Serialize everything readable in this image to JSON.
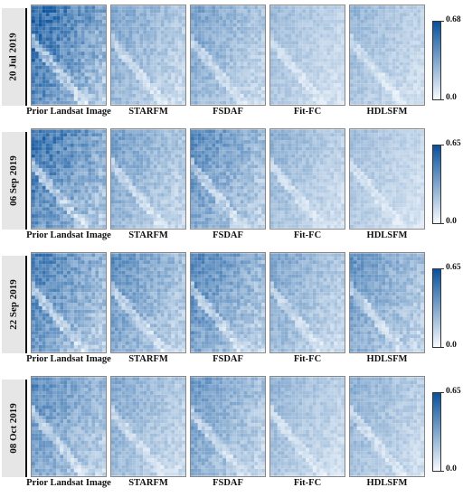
{
  "colorbar": {
    "low_color": "#f7fbff",
    "high_color": "#08519c"
  },
  "rows": [
    {
      "date": "20 Jul 2019",
      "vmax": "0.68",
      "vmin": "0.0",
      "panels": [
        {
          "label": "Prior Landsat Image",
          "intensity": 0.75
        },
        {
          "label": "STARFM",
          "intensity": 0.42
        },
        {
          "label": "FSDAF",
          "intensity": 0.44
        },
        {
          "label": "Fit-FC",
          "intensity": 0.3
        },
        {
          "label": "HDLSFM",
          "intensity": 0.33
        }
      ]
    },
    {
      "date": "06 Sep 2019",
      "vmax": "0.65",
      "vmin": "0.0",
      "panels": [
        {
          "label": "Prior Landsat Image",
          "intensity": 0.7
        },
        {
          "label": "STARFM",
          "intensity": 0.45
        },
        {
          "label": "FSDAF",
          "intensity": 0.55
        },
        {
          "label": "Fit-FC",
          "intensity": 0.35
        },
        {
          "label": "HDLSFM",
          "intensity": 0.28
        }
      ]
    },
    {
      "date": "22 Sep 2019",
      "vmax": "0.65",
      "vmin": "0.0",
      "panels": [
        {
          "label": "Prior Landsat Image",
          "intensity": 0.62
        },
        {
          "label": "STARFM",
          "intensity": 0.52
        },
        {
          "label": "FSDAF",
          "intensity": 0.58
        },
        {
          "label": "Fit-FC",
          "intensity": 0.42
        },
        {
          "label": "HDLSFM",
          "intensity": 0.5
        }
      ]
    },
    {
      "date": "08 Oct 2019",
      "vmax": "0.65",
      "vmin": "0.0",
      "panels": [
        {
          "label": "Prior Landsat Image",
          "intensity": 0.55
        },
        {
          "label": "STARFM",
          "intensity": 0.4
        },
        {
          "label": "FSDAF",
          "intensity": 0.48
        },
        {
          "label": "Fit-FC",
          "intensity": 0.34
        },
        {
          "label": "HDLSFM",
          "intensity": 0.36
        }
      ]
    }
  ]
}
